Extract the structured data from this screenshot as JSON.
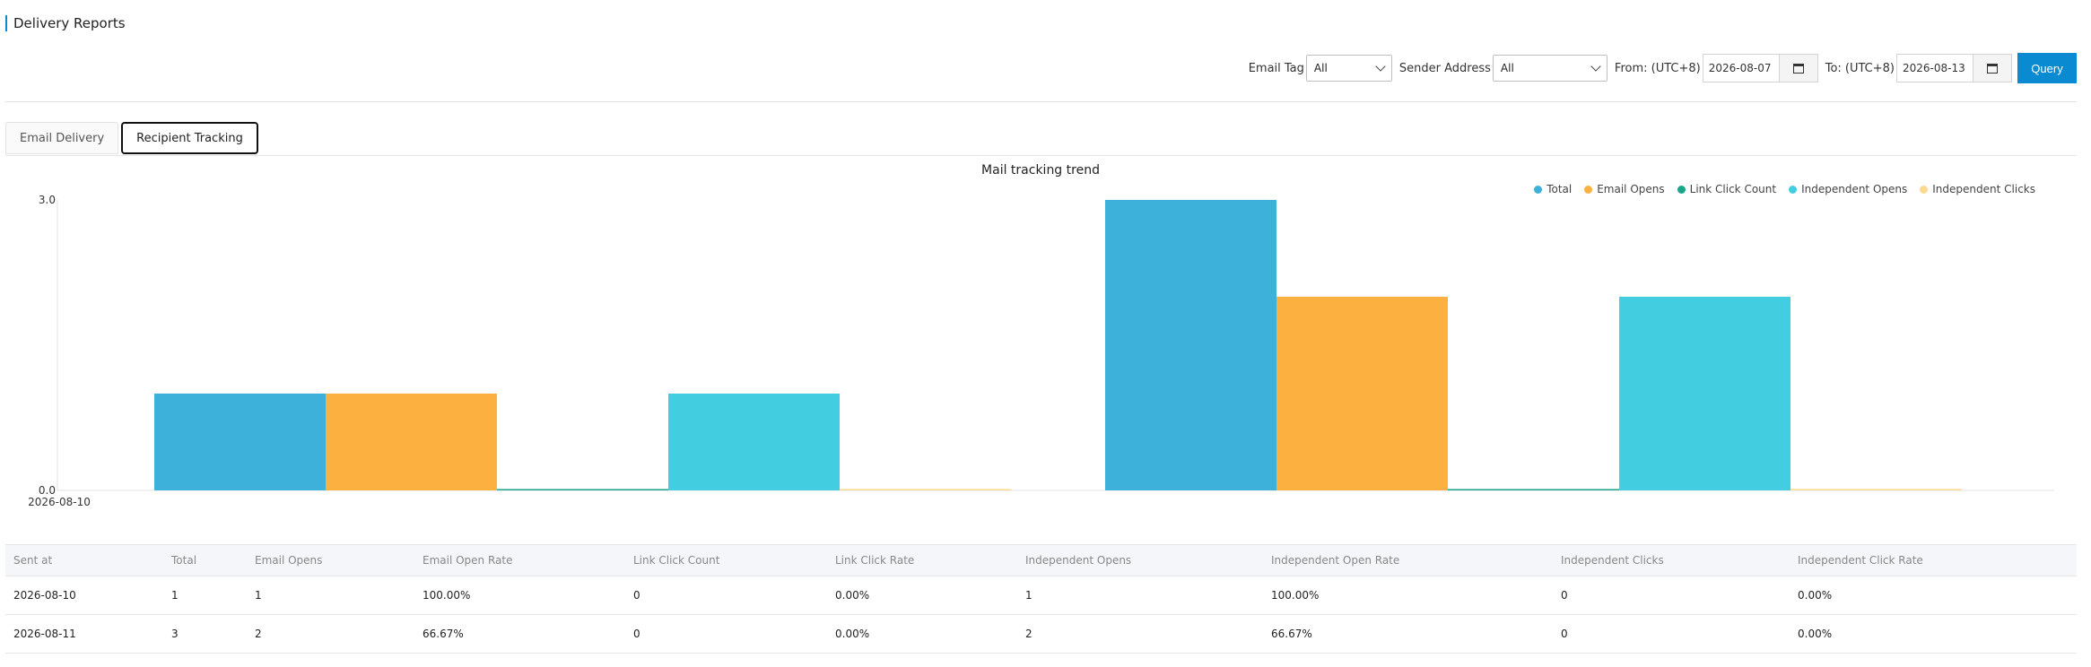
{
  "page": {
    "title": "Delivery Reports"
  },
  "filters": {
    "email_tag_label": "Email Tag",
    "email_tag_value": "All",
    "sender_address_label": "Sender Address",
    "sender_address_value": "All",
    "from_label": "From: (UTC+8)",
    "from_value": "2026-08-07",
    "to_label": "To: (UTC+8)",
    "to_value": "2026-08-13",
    "query_label": "Query"
  },
  "tabs": [
    {
      "label": "Email Delivery",
      "active": false
    },
    {
      "label": "Recipient Tracking",
      "active": true
    }
  ],
  "legend": [
    {
      "name": "Total",
      "color": "#3db1d9"
    },
    {
      "name": "Email Opens",
      "color": "#fbb040"
    },
    {
      "name": "Link Click Count",
      "color": "#1aa58a"
    },
    {
      "name": "Independent Opens",
      "color": "#43cde0"
    },
    {
      "name": "Independent Clicks",
      "color": "#fcd890"
    }
  ],
  "chart_data": {
    "type": "bar",
    "title": "Mail tracking trend",
    "categories": [
      "2026-08-10",
      "2026-08-11"
    ],
    "x_tick_labels": [
      "2026-08-10"
    ],
    "y_tick_labels": [
      "3.0",
      "0.0"
    ],
    "ylim": [
      0,
      3
    ],
    "legend_position": "top-right",
    "series": [
      {
        "name": "Total",
        "values": [
          1,
          3
        ],
        "color": "#3db1d9"
      },
      {
        "name": "Email Opens",
        "values": [
          1,
          2
        ],
        "color": "#fbb040"
      },
      {
        "name": "Link Click Count",
        "values": [
          0,
          0
        ],
        "color": "#1aa58a"
      },
      {
        "name": "Independent Opens",
        "values": [
          1,
          2
        ],
        "color": "#43cde0"
      },
      {
        "name": "Independent Clicks",
        "values": [
          0,
          0
        ],
        "color": "#fcd890"
      }
    ]
  },
  "table": {
    "columns": [
      "Sent at",
      "Total",
      "Email Opens",
      "Email Open Rate",
      "Link Click Count",
      "Link Click Rate",
      "Independent Opens",
      "Independent Open Rate",
      "Independent Clicks",
      "Independent Click Rate"
    ],
    "rows": [
      [
        "2026-08-10",
        "1",
        "1",
        "100.00%",
        "0",
        "0.00%",
        "1",
        "100.00%",
        "0",
        "0.00%"
      ],
      [
        "2026-08-11",
        "3",
        "2",
        "66.67%",
        "0",
        "0.00%",
        "2",
        "66.67%",
        "0",
        "0.00%"
      ]
    ]
  }
}
